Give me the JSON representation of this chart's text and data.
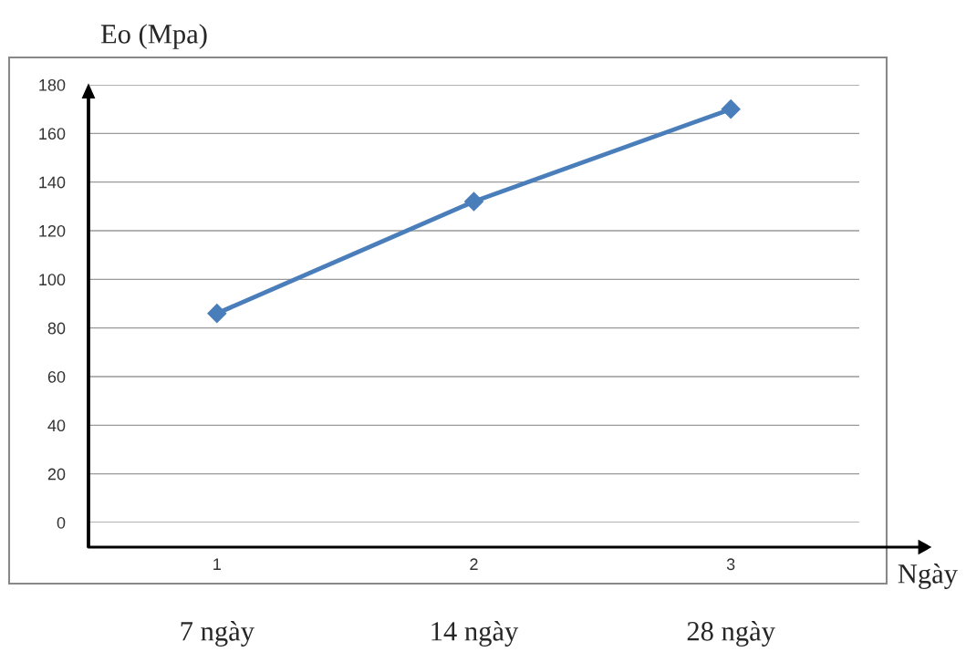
{
  "chart_data": {
    "type": "line",
    "xlabel": "Ngày",
    "ylabel": "Eo (Mpa)",
    "categories": [
      "1",
      "2",
      "3"
    ],
    "series": [
      {
        "color": "#4a7ebb",
        "values": [
          86,
          132,
          170
        ]
      }
    ],
    "ylim": [
      0,
      180
    ],
    "yticks": [
      0,
      20,
      40,
      60,
      80,
      100,
      120,
      140,
      160,
      180
    ],
    "grid": "y",
    "marker": "diamond",
    "line_style": "solid",
    "legend": false,
    "annotations": [
      "7 ngày",
      "14 ngày",
      "28 ngày"
    ]
  }
}
